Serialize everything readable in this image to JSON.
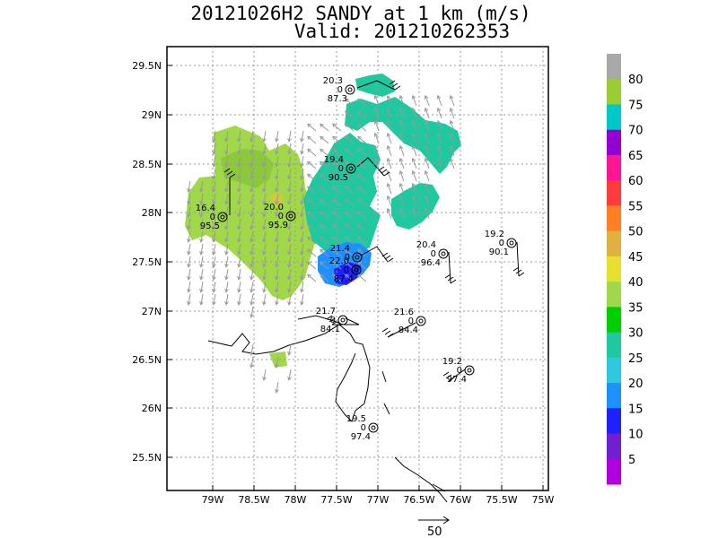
{
  "title": {
    "line1": "20121026H2 SANDY at 1 km (m/s)",
    "line2": "Valid: 201210262353"
  },
  "map": {
    "lat_labels": [
      "29.5N",
      "29N",
      "28.5N",
      "28N",
      "27.5N",
      "27N",
      "26.5N",
      "26N",
      "25.5N"
    ],
    "lon_labels": [
      "79W",
      "78.5W",
      "78W",
      "77.5W",
      "77W",
      "76.5W",
      "76W",
      "75.5W",
      "75W"
    ],
    "grid": true
  },
  "colorbar": {
    "labels": [
      "80",
      "75",
      "70",
      "65",
      "60",
      "55",
      "50",
      "45",
      "40",
      "35",
      "30",
      "25",
      "20",
      "15",
      "10",
      "5"
    ],
    "colors": [
      "#a8a8a8",
      "#9acd32",
      "#00c8c8",
      "#9400d3",
      "#ff1493",
      "#ff3c3c",
      "#ff7f24",
      "#e0b040",
      "#e8e030",
      "#a0d84a",
      "#00d000",
      "#20c8a0",
      "#30c8e0",
      "#1e90ff",
      "#2020ff",
      "#7020d0",
      "#b000e0"
    ]
  },
  "stations": [
    {
      "speed": "20.3",
      "dir": "0",
      "pres": "87.3"
    },
    {
      "speed": "19.4",
      "dir": "0",
      "pres": "90.5"
    },
    {
      "speed": "16.4",
      "dir": "0",
      "pres": "95.5"
    },
    {
      "speed": "20.0",
      "dir": "0",
      "pres": "95.9"
    },
    {
      "speed": "21.4",
      "dir": "0",
      "pres": ""
    },
    {
      "speed": "22.0",
      "dir": "0",
      "pres": ""
    },
    {
      "speed": "",
      "dir": "",
      "pres": "87.4"
    },
    {
      "speed": "20.4",
      "dir": "0",
      "pres": "96.4"
    },
    {
      "speed": "19.2",
      "dir": "0",
      "pres": "90.1"
    },
    {
      "speed": "21.7",
      "dir": "0",
      "pres": "84.1"
    },
    {
      "speed": "21.6",
      "dir": "0",
      "pres": "84.4"
    },
    {
      "speed": "19.2",
      "dir": "0",
      "pres": "97.4"
    },
    {
      "speed": "19.5",
      "dir": "0",
      "pres": "97.4"
    }
  ],
  "reference_vector": {
    "label": "50"
  }
}
